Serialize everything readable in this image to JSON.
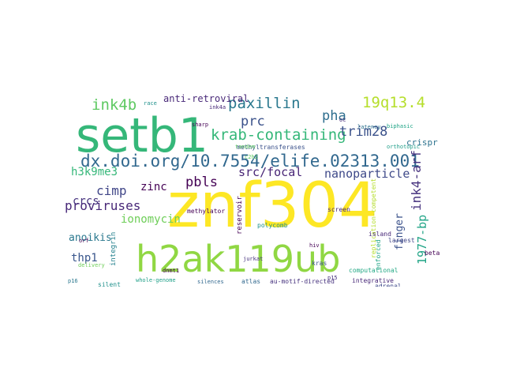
{
  "word_cloud": {
    "words": [
      {
        "text": "znf304",
        "color": "#fde725"
      },
      {
        "text": "setb1",
        "color": "#35b779"
      },
      {
        "text": "h2ak119ub",
        "color": "#90d743"
      },
      {
        "text": "dx.doi.org/10.7554/elife.02313.001",
        "color": "#31688e"
      },
      {
        "text": "krab-containing",
        "color": "#35b779"
      },
      {
        "text": "paxillin",
        "color": "#2a788e"
      },
      {
        "text": "19q13.4",
        "color": "#b5de2b"
      },
      {
        "text": "ink4b",
        "color": "#5ec962"
      },
      {
        "text": "pbls",
        "color": "#440154"
      },
      {
        "text": "prc",
        "color": "#3b528b"
      },
      {
        "text": "pha",
        "color": "#2e6e8e"
      },
      {
        "text": "trim28",
        "color": "#3b528b"
      },
      {
        "text": "proviruses",
        "color": "#482878"
      },
      {
        "text": "nanoparticle",
        "color": "#3e4989"
      },
      {
        "text": "src/focal",
        "color": "#482576"
      },
      {
        "text": "ink4-arf",
        "color": "#46327e"
      },
      {
        "text": "cimp",
        "color": "#404688"
      },
      {
        "text": "anti-retroviral",
        "color": "#482878"
      },
      {
        "text": "h3k9me3",
        "color": "#35b779"
      },
      {
        "text": "zinc",
        "color": "#440154"
      },
      {
        "text": "ionomycin",
        "color": "#6ece58"
      },
      {
        "text": "crcs",
        "color": "#46327e"
      },
      {
        "text": "anoikis",
        "color": "#2a788e"
      },
      {
        "text": "thp1",
        "color": "#39568c"
      },
      {
        "text": "1977-bp",
        "color": "#20a486"
      },
      {
        "text": "finger",
        "color": "#3b528b"
      },
      {
        "text": "crispr",
        "color": "#2c728e"
      },
      {
        "text": "reservoir",
        "color": "#440154"
      },
      {
        "text": "integrin",
        "color": "#26828e"
      },
      {
        "text": "replication-competent",
        "color": "#b5de2b"
      },
      {
        "text": "enforced",
        "color": "#20a486"
      },
      {
        "text": "computational",
        "color": "#22a884"
      },
      {
        "text": "polycomb",
        "color": "#21918c"
      },
      {
        "text": "methylator",
        "color": "#440154"
      },
      {
        "text": "methyltransferases",
        "color": "#3b528b"
      },
      {
        "text": "orthotopic",
        "color": "#1f9e89"
      },
      {
        "text": "whole-genome",
        "color": "#1fa088"
      },
      {
        "text": "au-motif-directed",
        "color": "#46327e"
      },
      {
        "text": "integrative",
        "color": "#482878"
      },
      {
        "text": "silences",
        "color": "#31688e"
      },
      {
        "text": "atlas",
        "color": "#31688e"
      },
      {
        "text": "adrenal",
        "color": "#3e4989"
      },
      {
        "text": "largest",
        "color": "#404688"
      },
      {
        "text": "island",
        "color": "#482878"
      },
      {
        "text": "latency",
        "color": "#2c728e"
      },
      {
        "text": "biphasic",
        "color": "#20a486"
      },
      {
        "text": "tandem",
        "color": "#5ec962"
      },
      {
        "text": "sharp",
        "color": "#440154"
      },
      {
        "text": "dnmt1",
        "color": "#440154"
      },
      {
        "text": "silent",
        "color": "#21918c"
      },
      {
        "text": "delivery",
        "color": "#6ece58"
      },
      {
        "text": "orf",
        "color": "#440154"
      },
      {
        "text": "hiv",
        "color": "#440154"
      },
      {
        "text": "jurkat",
        "color": "#46327e"
      },
      {
        "text": "c2h2",
        "color": "#5ec962"
      },
      {
        "text": "screen",
        "color": "#482878"
      },
      {
        "text": "kras",
        "color": "#3b528b"
      },
      {
        "text": "beta",
        "color": "#440154"
      },
      {
        "text": "p15",
        "color": "#46327e"
      },
      {
        "text": "p16",
        "color": "#2a788e"
      },
      {
        "text": "u937",
        "color": "#46327e"
      },
      {
        "text": "race",
        "color": "#21918c"
      },
      {
        "text": "oc",
        "color": "#482878"
      },
      {
        "text": "ink4a",
        "color": "#482878"
      }
    ]
  }
}
